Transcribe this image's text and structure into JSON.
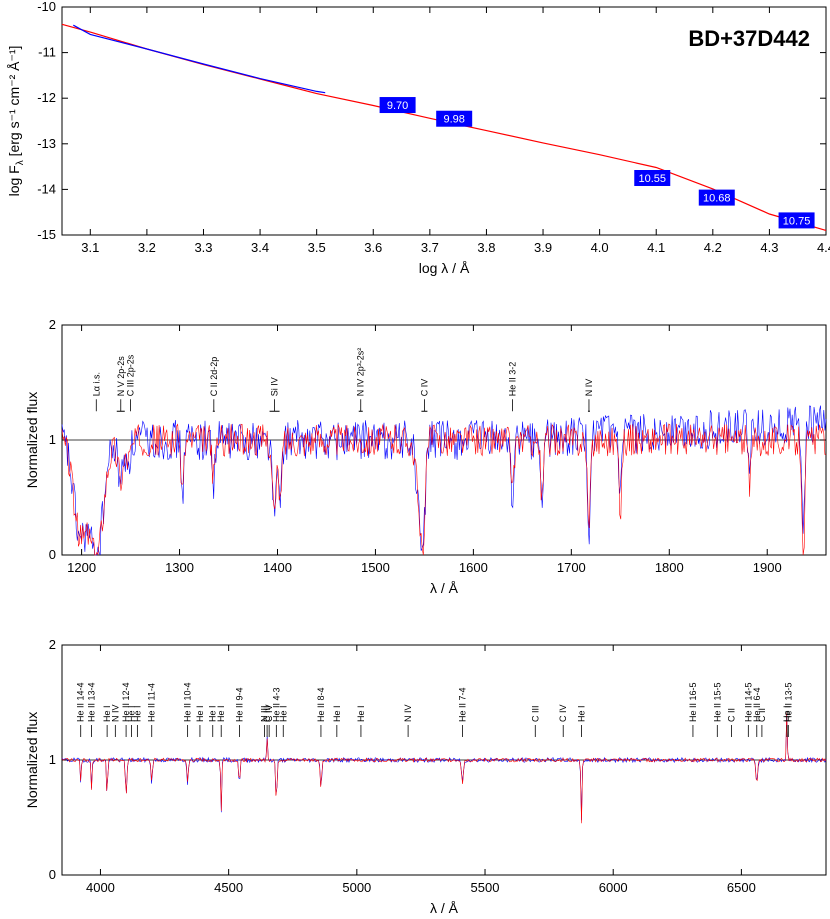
{
  "colors": {
    "model": "#ff0000",
    "observation": "#0000ff",
    "badge": "#0000ff",
    "unity": "#000000"
  },
  "chart_data": [
    {
      "type": "line",
      "star": "BD+37D442",
      "xlabel": "log λ / Å",
      "ylabel": "log F",
      "ylabel_sub": "λ",
      "ylabel_unit": "[erg s⁻¹ cm⁻² Å⁻¹]",
      "xlim": [
        3.05,
        4.4
      ],
      "ylim": [
        -15,
        -10
      ],
      "xticks": [
        3.1,
        3.2,
        3.3,
        3.4,
        3.5,
        3.6,
        3.7,
        3.8,
        3.9,
        4.0,
        4.1,
        4.2,
        4.3,
        4.4
      ],
      "xtick_labels": [
        "3.1",
        "3.2",
        "3.3",
        "3.4",
        "3.5",
        "3.6",
        "3.7",
        "3.8",
        "3.9",
        "4.0",
        "4.1",
        "4.2",
        "4.3",
        "4.4"
      ],
      "yticks": [
        -15,
        -14,
        -13,
        -12,
        -11,
        -10
      ],
      "ytick_labels": [
        "-15",
        "-14",
        "-13",
        "-12",
        "-11",
        "-10"
      ],
      "series": [
        {
          "role": "model",
          "x": [
            3.05,
            3.1,
            3.2,
            3.3,
            3.4,
            3.5,
            3.6,
            3.7,
            3.8,
            3.9,
            4.0,
            4.1,
            4.2,
            4.3,
            4.4
          ],
          "y": [
            -10.38,
            -10.55,
            -10.92,
            -11.26,
            -11.58,
            -11.9,
            -12.16,
            -12.44,
            -12.71,
            -12.98,
            -13.24,
            -13.52,
            -13.99,
            -14.54,
            -14.9
          ]
        },
        {
          "role": "observation",
          "x": [
            3.07,
            3.1,
            3.2,
            3.3,
            3.4,
            3.5,
            3.515
          ],
          "y": [
            -10.4,
            -10.6,
            -10.92,
            -11.25,
            -11.57,
            -11.85,
            -11.88
          ]
        }
      ],
      "magnitudes": [
        {
          "x": 3.643,
          "y": -12.15,
          "label": "9.70"
        },
        {
          "x": 3.743,
          "y": -12.45,
          "label": "9.98"
        },
        {
          "x": 4.093,
          "y": -13.75,
          "label": "10.55"
        },
        {
          "x": 4.207,
          "y": -14.18,
          "label": "10.68"
        },
        {
          "x": 4.348,
          "y": -14.68,
          "label": "10.75"
        }
      ]
    },
    {
      "type": "line",
      "xlabel": "λ / Å",
      "ylabel": "Normalized flux",
      "xlim": [
        1180,
        1960
      ],
      "ylim": [
        0,
        2
      ],
      "xticks": [
        1200,
        1300,
        1400,
        1500,
        1600,
        1700,
        1800,
        1900
      ],
      "xtick_labels": [
        "1200",
        "1300",
        "1400",
        "1500",
        "1600",
        "1700",
        "1800",
        "1900"
      ],
      "yticks": [
        0,
        1,
        2
      ],
      "ytick_labels": [
        "0",
        "1",
        "2"
      ],
      "lines": [
        {
          "w": 1215,
          "label": "Lα i.s.",
          "span": 0
        },
        {
          "w": 1240,
          "label": "N V 2p-2s",
          "span": 4
        },
        {
          "w": 1250,
          "label": "C III 2p-2s",
          "span": 0
        },
        {
          "w": 1335,
          "label": "C II 2d-2p",
          "span": 1
        },
        {
          "w": 1397,
          "label": "Si IV",
          "span": 5
        },
        {
          "w": 1485,
          "label": "N IV 2p³-2s²",
          "span": 2
        },
        {
          "w": 1550,
          "label": "C IV",
          "span": 3
        },
        {
          "w": 1640,
          "label": "He II 3-2",
          "span": 0
        },
        {
          "w": 1718,
          "label": "N IV",
          "span": 1
        }
      ],
      "absorptions": [
        {
          "w": 1198,
          "d": 0.8,
          "wd": 9
        },
        {
          "w": 1215,
          "d": 1.0,
          "wd": 10
        },
        {
          "w": 1243,
          "d": 0.6,
          "wd": 6
        },
        {
          "w": 1303,
          "d": 0.45,
          "wd": 2
        },
        {
          "w": 1335,
          "d": 0.35,
          "wd": 2
        },
        {
          "w": 1397,
          "d": 0.65,
          "wd": 3
        },
        {
          "w": 1403,
          "d": 0.55,
          "wd": 2
        },
        {
          "w": 1548,
          "d": 1.0,
          "wd": 6
        },
        {
          "w": 1640,
          "d": 0.5,
          "wd": 2
        },
        {
          "w": 1670,
          "d": 0.55,
          "wd": 2
        },
        {
          "w": 1718,
          "d": 0.8,
          "wd": 2
        },
        {
          "w": 1750,
          "d": 0.6,
          "wd": 2
        },
        {
          "w": 1882,
          "d": 0.4,
          "wd": 2
        },
        {
          "w": 1937,
          "d": 0.95,
          "wd": 2
        }
      ],
      "emissions": [
        {
          "w": 1244,
          "h": 0.4,
          "wd": 4
        },
        {
          "w": 1553,
          "h": 0.35,
          "wd": 4
        }
      ]
    },
    {
      "type": "line",
      "xlabel": "λ / Å",
      "ylabel": "Normalized flux",
      "xlim": [
        3850,
        6830
      ],
      "ylim": [
        0,
        2
      ],
      "xticks": [
        4000,
        4500,
        5000,
        5500,
        6000,
        6500
      ],
      "xtick_labels": [
        "4000",
        "4500",
        "5000",
        "5500",
        "6000",
        "6500"
      ],
      "yticks": [
        0,
        1,
        2
      ],
      "ytick_labels": [
        "0",
        "1",
        "2"
      ],
      "lines": [
        {
          "w": 3923,
          "label": "He II 14-4"
        },
        {
          "w": 3965,
          "label": "He II 13-4"
        },
        {
          "w": 4026,
          "label": "He I"
        },
        {
          "w": 4058,
          "label": "N IV"
        },
        {
          "w": 4100,
          "label": "He II 12-4"
        },
        {
          "w": 4121,
          "label": "He I"
        },
        {
          "w": 4144,
          "label": "He I"
        },
        {
          "w": 4200,
          "label": "He II 11-4"
        },
        {
          "w": 4340,
          "label": "He II 10-4"
        },
        {
          "w": 4388,
          "label": "He I"
        },
        {
          "w": 4438,
          "label": "He I"
        },
        {
          "w": 4471,
          "label": "He I"
        },
        {
          "w": 4542,
          "label": "He II 9-4"
        },
        {
          "w": 4640,
          "label": "N III"
        },
        {
          "w": 4658,
          "label": "C IV"
        },
        {
          "w": 4650,
          "label": "C III"
        },
        {
          "w": 4686,
          "label": "He II 4-3"
        },
        {
          "w": 4713,
          "label": "He I"
        },
        {
          "w": 4860,
          "label": "He II 8-4"
        },
        {
          "w": 4922,
          "label": "He I"
        },
        {
          "w": 5016,
          "label": "He I"
        },
        {
          "w": 5200,
          "label": "N IV"
        },
        {
          "w": 5412,
          "label": "He II 7-4"
        },
        {
          "w": 5696,
          "label": "C III"
        },
        {
          "w": 5805,
          "label": "C IV"
        },
        {
          "w": 5876,
          "label": "He I"
        },
        {
          "w": 6311,
          "label": "He II 16-5"
        },
        {
          "w": 6406,
          "label": "He II 15-5"
        },
        {
          "w": 6461,
          "label": "C II"
        },
        {
          "w": 6527,
          "label": "He II 14-5"
        },
        {
          "w": 6560,
          "label": "He II 6-4"
        },
        {
          "w": 6580,
          "label": "C II"
        },
        {
          "w": 6678,
          "label": "He I"
        },
        {
          "w": 6683,
          "label": "He II 13-5"
        }
      ],
      "absorptions": [
        {
          "w": 3923,
          "d": 0.2,
          "wd": 3
        },
        {
          "w": 3965,
          "d": 0.25,
          "wd": 3
        },
        {
          "w": 4026,
          "d": 0.35,
          "wd": 3
        },
        {
          "w": 4100,
          "d": 0.3,
          "wd": 4
        },
        {
          "w": 4200,
          "d": 0.2,
          "wd": 4
        },
        {
          "w": 4340,
          "d": 0.2,
          "wd": 4
        },
        {
          "w": 4471,
          "d": 0.45,
          "wd": 3
        },
        {
          "w": 4542,
          "d": 0.2,
          "wd": 4
        },
        {
          "w": 4686,
          "d": 0.35,
          "wd": 4
        },
        {
          "w": 4860,
          "d": 0.25,
          "wd": 4
        },
        {
          "w": 5412,
          "d": 0.2,
          "wd": 5
        },
        {
          "w": 5876,
          "d": 0.55,
          "wd": 3
        },
        {
          "w": 6560,
          "d": 0.2,
          "wd": 5
        }
      ],
      "emissions": [
        {
          "w": 4650,
          "h": 0.2,
          "wd": 3
        },
        {
          "w": 6678,
          "h": 0.6,
          "wd": 2
        }
      ]
    }
  ]
}
